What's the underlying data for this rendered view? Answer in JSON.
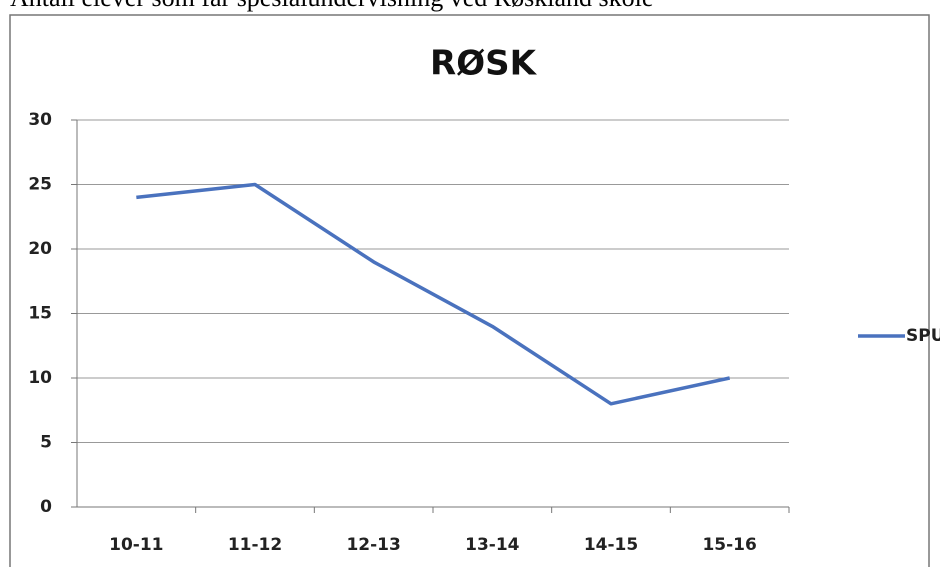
{
  "caption": "Antall elever som får spesialundervisning ved Røskland skole",
  "chart_data": {
    "type": "line",
    "title": "RØSK",
    "categories": [
      "10-11",
      "11-12",
      "12-13",
      "13-14",
      "14-15",
      "15-16"
    ],
    "series": [
      {
        "name": "SPU",
        "color": "#4a72be",
        "values": [
          24,
          25,
          19,
          14,
          8,
          10
        ]
      }
    ],
    "ylim": [
      0,
      30
    ],
    "yticks": [
      0,
      5,
      10,
      15,
      20,
      25,
      30
    ],
    "grid": true,
    "legend": "right"
  }
}
